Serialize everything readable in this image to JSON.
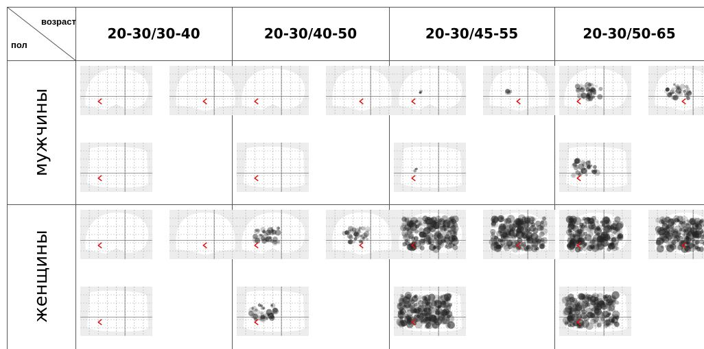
{
  "corner": {
    "age_label": "возраст",
    "sex_label": "пол"
  },
  "columns": [
    "20-30/30-40",
    "20-30/40-50",
    "20-30/45-55",
    "20-30/50-65"
  ],
  "rows": [
    "мужчины",
    "женщины"
  ],
  "colors": {
    "grid": "#555555",
    "mip_bg": "#ededed",
    "brain_fill": "#ffffff",
    "marker": "#e01010",
    "activation": "#222222"
  },
  "views": [
    "sagittal-view",
    "coronal-view",
    "axial-view"
  ],
  "activation_levels": {
    "мужчины": [
      "none",
      "none",
      "small",
      "moderate"
    ],
    "женщины": [
      "none",
      "moderate",
      "extensive",
      "extensive"
    ]
  }
}
